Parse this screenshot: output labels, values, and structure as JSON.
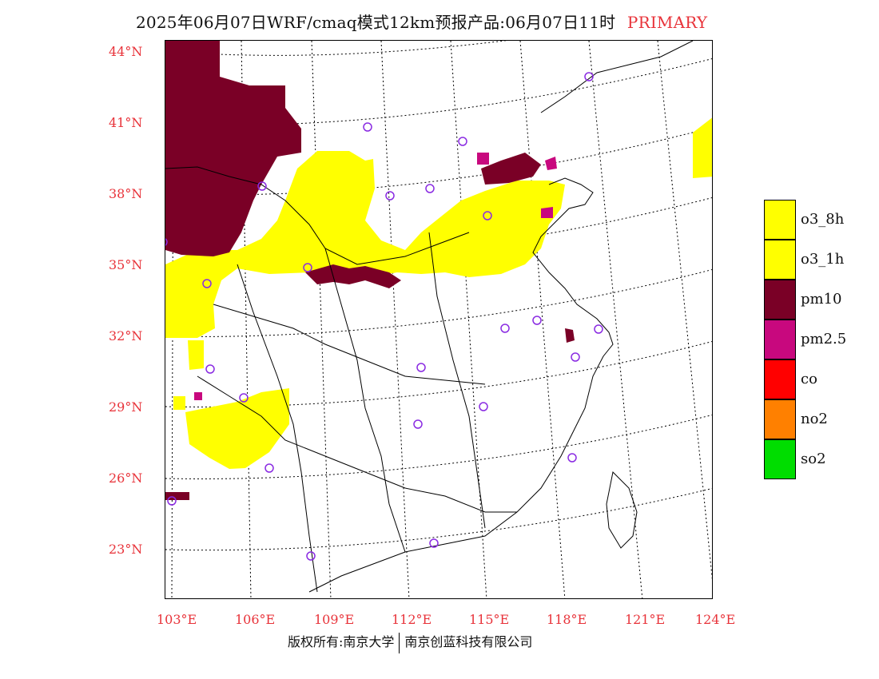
{
  "title": {
    "main": "2025年06月07日WRF/cmaq模式12km预报产品:06月07日11时",
    "flag": "PRIMARY"
  },
  "lat_labels": [
    "44°N",
    "41°N",
    "38°N",
    "35°N",
    "32°N",
    "29°N",
    "26°N",
    "23°N"
  ],
  "lon_labels": [
    "103°E",
    "106°E",
    "109°E",
    "112°E",
    "115°E",
    "118°E",
    "121°E",
    "124°E"
  ],
  "legend": [
    {
      "label": "o3_8h",
      "color": "#ffff00"
    },
    {
      "label": "o3_1h",
      "color": "#ffff00"
    },
    {
      "label": "pm10",
      "color": "#7a0026"
    },
    {
      "label": "pm2.5",
      "color": "#c8087e"
    },
    {
      "label": "co",
      "color": "#ff0000"
    },
    {
      "label": "no2",
      "color": "#ff8000"
    },
    {
      "label": "so2",
      "color": "#00dd00"
    }
  ],
  "colors": {
    "ozone": "#ffff00",
    "pm10": "#7a0026",
    "pm25": "#c8087e",
    "station_marker": "#8a2be2",
    "axis_text": "#e8333a"
  },
  "credit": {
    "left": "版权所有:南京大学",
    "right": "南京创蓝科技有限公司"
  }
}
